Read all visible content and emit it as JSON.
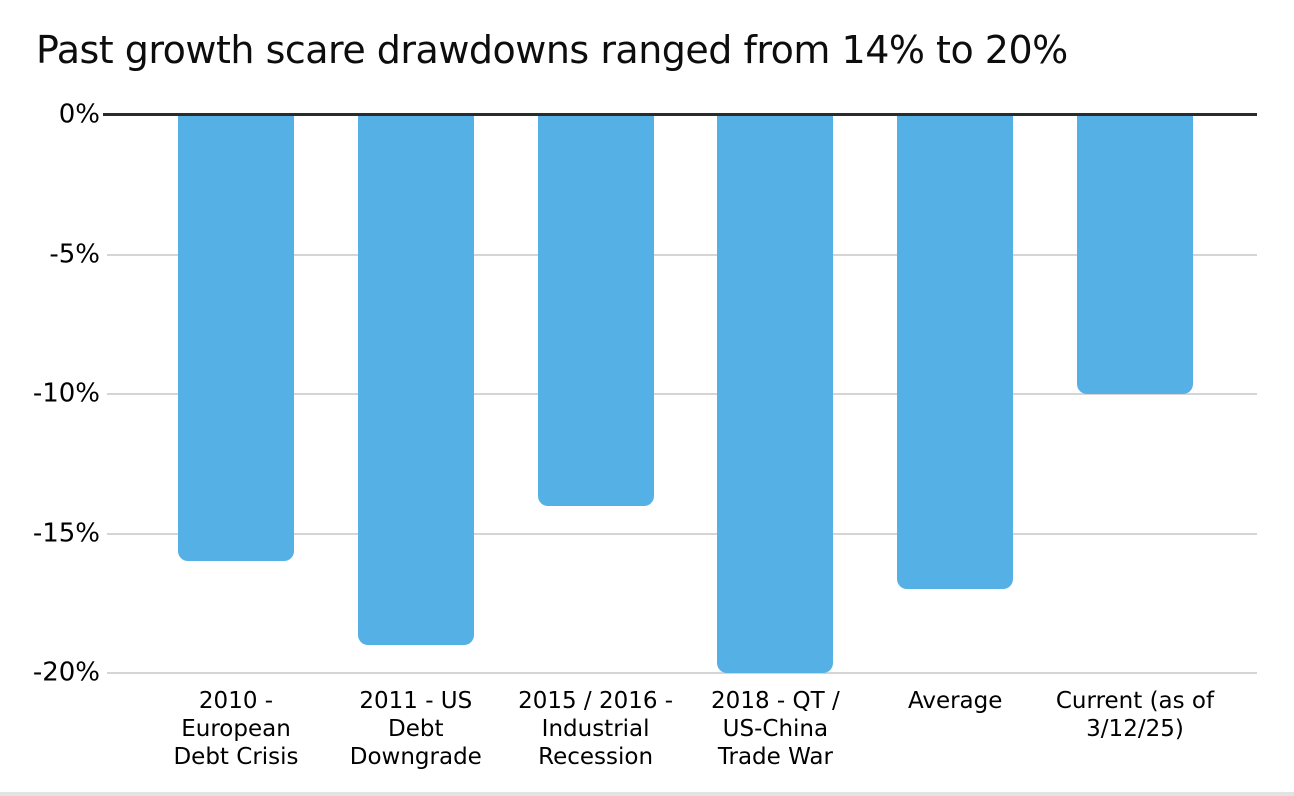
{
  "title": "Past growth scare drawdowns ranged from 14% to 20%",
  "chart_data": {
    "type": "bar",
    "orientation": "vertical",
    "title": "Past growth scare drawdowns ranged from 14% to 20%",
    "categories": [
      "2010 -\nEuropean\nDebt Crisis",
      "2011 - US\nDebt\nDowngrade",
      "2015 / 2016 -\nIndustrial\nRecession",
      "2018 - QT /\nUS-China\nTrade War",
      "Average",
      "Current (as of\n3/12/25)"
    ],
    "values": [
      -16,
      -19,
      -14,
      -20,
      -17,
      -10
    ],
    "unit": "%",
    "xlabel": "",
    "ylabel": "",
    "ylim": [
      -20,
      0
    ],
    "yticks": [
      0,
      -5,
      -10,
      -15,
      -20
    ],
    "ytick_labels": [
      "0%",
      "-5%",
      "-10%",
      "-15%",
      "-20%"
    ],
    "grid": true,
    "legend": false,
    "colors": {
      "bar": "#55B1E5",
      "gridline": "#D5D5D5",
      "zero_line": "#2B2B2B",
      "text": "#000000",
      "background": "#FFFFFF"
    }
  }
}
